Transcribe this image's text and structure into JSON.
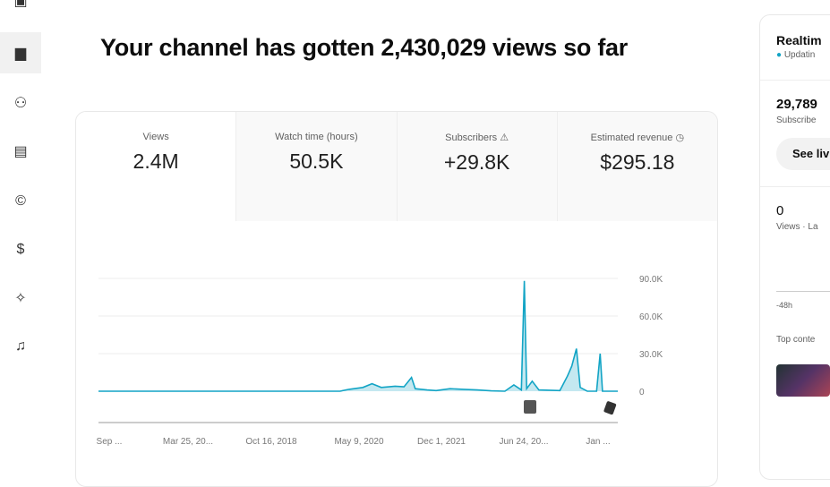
{
  "nav": {
    "items": [
      {
        "icon": "content-icon",
        "glyph": "▣"
      },
      {
        "icon": "analytics-icon",
        "glyph": "▆",
        "active": true
      },
      {
        "icon": "community-icon",
        "glyph": "⚇"
      },
      {
        "icon": "subtitles-icon",
        "glyph": "▤"
      },
      {
        "icon": "copyright-icon",
        "glyph": "©"
      },
      {
        "icon": "earn-icon",
        "glyph": "$"
      },
      {
        "icon": "customization-icon",
        "glyph": "✧"
      },
      {
        "icon": "audio-library-icon",
        "glyph": "♫"
      }
    ]
  },
  "headline": "Your channel has gotten 2,430,029 views so far",
  "metrics": [
    {
      "label": "Views",
      "value": "2.4M"
    },
    {
      "label": "Watch time (hours)",
      "value": "50.5K"
    },
    {
      "label": "Subscribers",
      "value": "+29.8K",
      "icon": "warning-icon"
    },
    {
      "label": "Estimated revenue",
      "value": "$295.18",
      "icon": "clock-icon"
    }
  ],
  "chart_data": {
    "type": "area",
    "color": "#12a4c5",
    "yticks": [
      "0",
      "30.0K",
      "60.0K",
      "90.0K"
    ],
    "ylim": [
      0,
      90000
    ],
    "xlim": [
      "2015-08-10",
      "2025-01-20"
    ],
    "xticks": [
      "Sep ...",
      "Mar 25, 20...",
      "Oct 16, 2018",
      "May 9, 2020",
      "Dec 1, 2021",
      "Jun 24, 20...",
      "Jan ..."
    ],
    "grid": true,
    "points": [
      [
        "2015-08-10",
        0
      ],
      [
        "2020-01-01",
        0
      ],
      [
        "2020-03-01",
        1500
      ],
      [
        "2020-06-01",
        3000
      ],
      [
        "2020-08-01",
        6000
      ],
      [
        "2020-10-01",
        3000
      ],
      [
        "2021-01-01",
        4000
      ],
      [
        "2021-03-01",
        3500
      ],
      [
        "2021-04-20",
        11000
      ],
      [
        "2021-05-15",
        2000
      ],
      [
        "2021-08-01",
        1000
      ],
      [
        "2021-10-01",
        500
      ],
      [
        "2022-01-01",
        2000
      ],
      [
        "2022-04-01",
        1500
      ],
      [
        "2022-07-01",
        1000
      ],
      [
        "2022-10-01",
        300
      ],
      [
        "2023-01-01",
        0
      ],
      [
        "2023-03-01",
        5000
      ],
      [
        "2023-04-20",
        1000
      ],
      [
        "2023-05-10",
        88000
      ],
      [
        "2023-05-25",
        2000
      ],
      [
        "2023-07-01",
        8000
      ],
      [
        "2023-08-15",
        1000
      ],
      [
        "2024-01-01",
        500
      ],
      [
        "2024-02-20",
        12000
      ],
      [
        "2024-03-20",
        20000
      ],
      [
        "2024-04-20",
        34000
      ],
      [
        "2024-05-15",
        3000
      ],
      [
        "2024-07-01",
        0
      ],
      [
        "2024-09-01",
        0
      ],
      [
        "2024-09-25",
        30000
      ],
      [
        "2024-10-10",
        0
      ],
      [
        "2025-01-20",
        0
      ]
    ],
    "markers": [
      {
        "icon": "video-marker-icon",
        "date": "2023-07-01"
      },
      {
        "icon": "marker-icon",
        "date": "2025-01-01"
      }
    ]
  },
  "realtime": {
    "title": "Realtim",
    "status": "Updatin",
    "subs": "29,789",
    "subs_label": "Subscribe",
    "button": "See liv",
    "views": "0",
    "views_label": "Views · La",
    "axis": "-48h",
    "top": "Top conte"
  }
}
